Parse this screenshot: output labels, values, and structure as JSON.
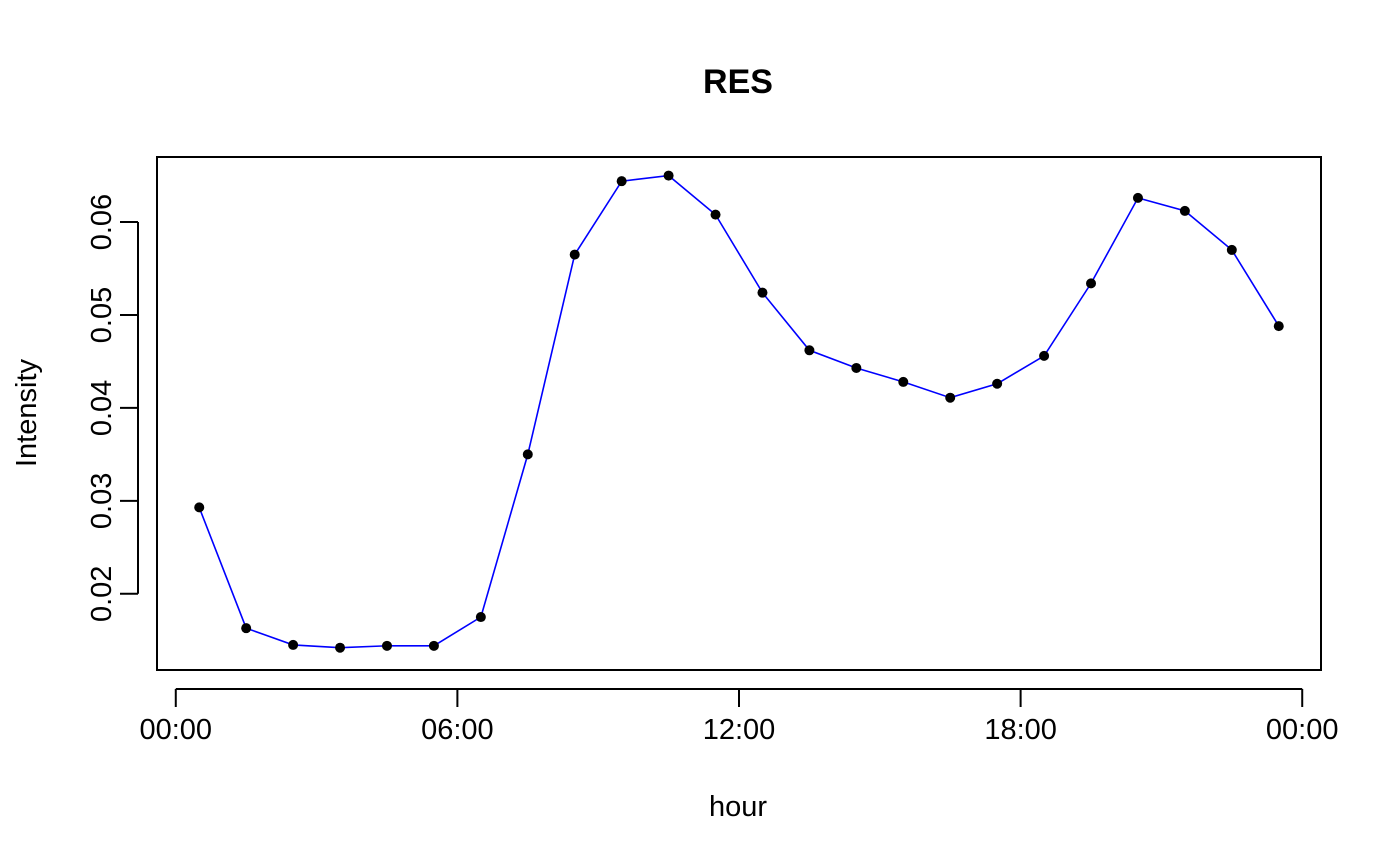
{
  "chart_data": {
    "type": "line",
    "title": "RES",
    "xlabel": "hour",
    "ylabel": "Intensity",
    "x_ticks": [
      "00:00",
      "06:00",
      "12:00",
      "18:00",
      "00:00"
    ],
    "x_tick_hours": [
      0,
      6,
      12,
      18,
      24
    ],
    "y_ticks": [
      "0.02",
      "0.03",
      "0.04",
      "0.05",
      "0.06"
    ],
    "y_tick_values": [
      0.02,
      0.03,
      0.04,
      0.05,
      0.06
    ],
    "xlim_hours": [
      -0.4,
      24.4
    ],
    "ylim": [
      0.0118,
      0.067
    ],
    "grid": false,
    "line_color": "#0000ff",
    "point_color": "#000000",
    "series": [
      {
        "x": [
          0.5,
          1.5,
          2.5,
          3.5,
          4.5,
          5.5,
          6.5,
          7.5,
          8.5,
          9.5,
          10.5,
          11.5,
          12.5,
          13.5,
          14.5,
          15.5,
          16.5,
          17.5,
          18.5,
          19.5,
          20.5,
          21.5,
          22.5,
          23.5
        ],
        "values": [
          0.0293,
          0.0163,
          0.0145,
          0.0142,
          0.0144,
          0.0144,
          0.0175,
          0.035,
          0.0565,
          0.0644,
          0.065,
          0.0608,
          0.0524,
          0.0462,
          0.0443,
          0.0428,
          0.0411,
          0.0426,
          0.0456,
          0.0534,
          0.0626,
          0.0612,
          0.057,
          0.0488
        ]
      }
    ]
  }
}
